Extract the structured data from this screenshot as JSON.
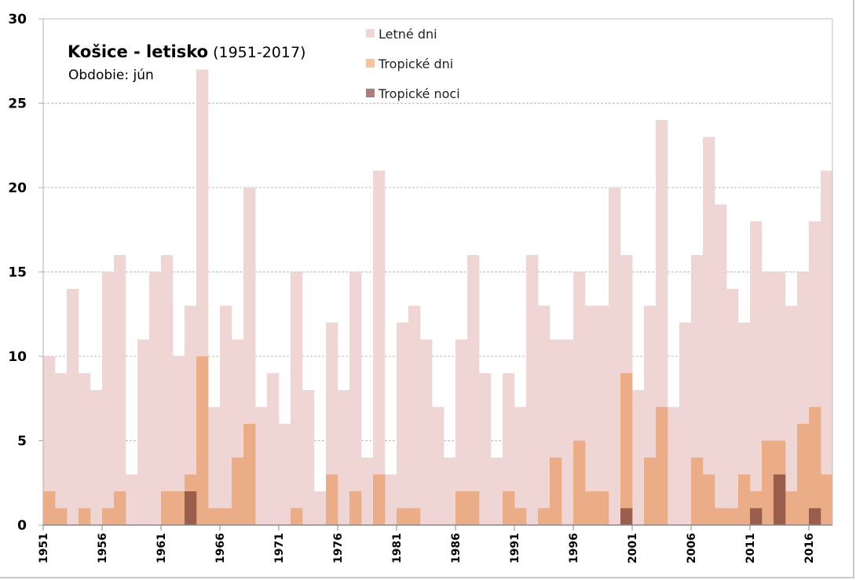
{
  "chart_data": {
    "type": "bar",
    "stacking": "overlapped",
    "title": "Košice - letisko",
    "title_period": "(1951-2017)",
    "subtitle": "Obdobie: jún",
    "xlabel": "",
    "ylabel": "",
    "ylim": [
      0,
      30
    ],
    "yticks": [
      0,
      5,
      10,
      15,
      20,
      25,
      30
    ],
    "grid": true,
    "legend_position": "top-center",
    "x": [
      1951,
      1952,
      1953,
      1954,
      1955,
      1956,
      1957,
      1958,
      1959,
      1960,
      1961,
      1962,
      1963,
      1964,
      1965,
      1966,
      1967,
      1968,
      1969,
      1970,
      1971,
      1972,
      1973,
      1974,
      1975,
      1976,
      1977,
      1978,
      1979,
      1980,
      1981,
      1982,
      1983,
      1984,
      1985,
      1986,
      1987,
      1988,
      1989,
      1990,
      1991,
      1992,
      1993,
      1994,
      1995,
      1996,
      1997,
      1998,
      1999,
      2000,
      2001,
      2002,
      2003,
      2004,
      2005,
      2006,
      2007,
      2008,
      2009,
      2010,
      2011,
      2012,
      2013,
      2014,
      2015,
      2016,
      2017
    ],
    "xtick_labels": [
      "1951",
      "1956",
      "1961",
      "1966",
      "1971",
      "1976",
      "1981",
      "1986",
      "1991",
      "1996",
      "2001",
      "2006",
      "2011",
      "2016"
    ],
    "series": [
      {
        "name": "Letné dni",
        "color": "#f0d5d5",
        "values": [
          10,
          9,
          14,
          9,
          8,
          15,
          16,
          3,
          11,
          15,
          16,
          10,
          13,
          27,
          7,
          13,
          11,
          20,
          7,
          9,
          6,
          15,
          8,
          2,
          12,
          8,
          15,
          4,
          21,
          3,
          12,
          13,
          11,
          7,
          4,
          11,
          16,
          9,
          4,
          9,
          7,
          16,
          13,
          11,
          11,
          15,
          13,
          13,
          20,
          16,
          8,
          13,
          24,
          7,
          12,
          16,
          23,
          19,
          14,
          12,
          18,
          15,
          15,
          13,
          15,
          18,
          21
        ]
      },
      {
        "name": "Tropické dni",
        "color": "#ebad87",
        "values": [
          2,
          1,
          0,
          1,
          0,
          1,
          2,
          0,
          0,
          0,
          2,
          2,
          3,
          10,
          1,
          1,
          4,
          6,
          0,
          0,
          0,
          1,
          0,
          0,
          3,
          0,
          2,
          0,
          3,
          0,
          1,
          1,
          0,
          0,
          0,
          2,
          2,
          0,
          0,
          2,
          1,
          0,
          1,
          4,
          0,
          5,
          2,
          2,
          0,
          9,
          0,
          4,
          7,
          0,
          0,
          4,
          3,
          1,
          1,
          3,
          2,
          5,
          5,
          2,
          6,
          7,
          3
        ]
      },
      {
        "name": "Tropické noci",
        "color": "#9b5e4d",
        "values": [
          0,
          0,
          0,
          0,
          0,
          0,
          0,
          0,
          0,
          0,
          0,
          0,
          2,
          0,
          0,
          0,
          0,
          0,
          0,
          0,
          0,
          0,
          0,
          0,
          0,
          0,
          0,
          0,
          0,
          0,
          0,
          0,
          0,
          0,
          0,
          0,
          0,
          0,
          0,
          0,
          0,
          0,
          0,
          0,
          0,
          0,
          0,
          0,
          0,
          1,
          0,
          0,
          0,
          0,
          0,
          0,
          0,
          0,
          0,
          0,
          1,
          0,
          3,
          0,
          0,
          1,
          0
        ]
      }
    ],
    "legend": [
      {
        "label": "Letné dni",
        "swatch": "#f0d5d5"
      },
      {
        "label": "Tropické dni",
        "swatch": "#f5c4a0"
      },
      {
        "label": "Tropické noci",
        "swatch": "#a97f7a"
      }
    ]
  }
}
